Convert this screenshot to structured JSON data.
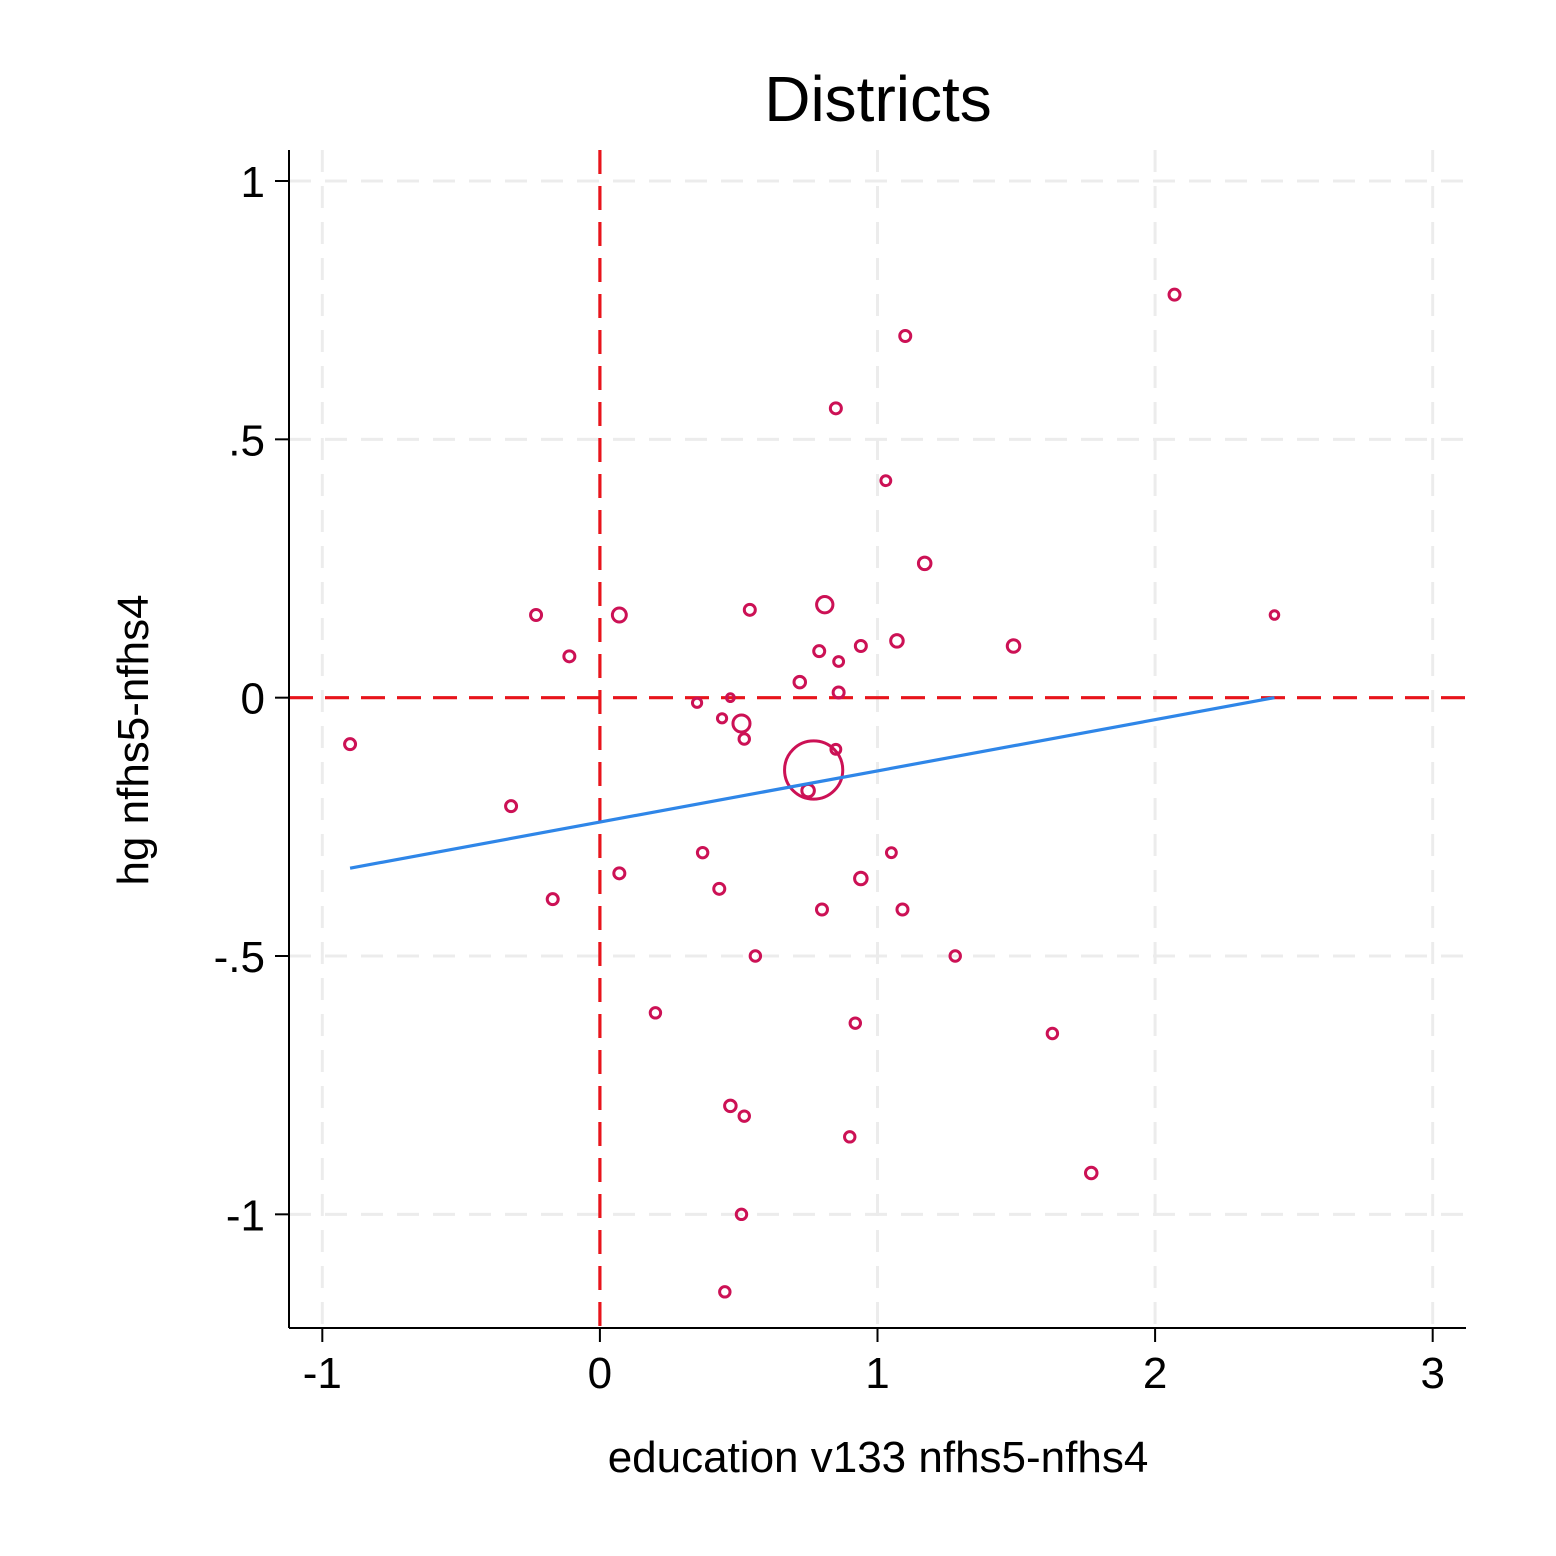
{
  "chart_data": {
    "type": "scatter",
    "title": "Districts",
    "xlabel": "education v133 nfhs5-nfhs4",
    "ylabel": "hg nfhs5-nfhs4",
    "xlim": [
      -1.12,
      3.12
    ],
    "ylim": [
      -1.22,
      1.06
    ],
    "xticks": [
      -1,
      0,
      1,
      2,
      3
    ],
    "xtick_labels": [
      "-1",
      "0",
      "1",
      "2",
      "3"
    ],
    "yticks": [
      -1,
      -0.5,
      0,
      0.5,
      1
    ],
    "ytick_labels": [
      "-1",
      "-.5",
      "0",
      ".5",
      "1"
    ],
    "grid": true,
    "reference_lines": {
      "x": 0,
      "y": 0
    },
    "marker_color": "#cc1155",
    "fit_color": "#2f86e8",
    "ref_color": "#e8141b",
    "points": [
      {
        "x": 2.07,
        "y": 0.78,
        "w": 1
      },
      {
        "x": 1.1,
        "y": 0.7,
        "w": 1
      },
      {
        "x": 0.85,
        "y": 0.56,
        "w": 1
      },
      {
        "x": 1.03,
        "y": 0.42,
        "w": 0.8
      },
      {
        "x": 1.17,
        "y": 0.26,
        "w": 1.3
      },
      {
        "x": 0.81,
        "y": 0.18,
        "w": 2.2
      },
      {
        "x": -0.23,
        "y": 0.16,
        "w": 1
      },
      {
        "x": 0.07,
        "y": 0.16,
        "w": 1.6
      },
      {
        "x": 0.54,
        "y": 0.17,
        "w": 1
      },
      {
        "x": 2.43,
        "y": 0.16,
        "w": 0.6
      },
      {
        "x": 1.07,
        "y": 0.11,
        "w": 1.3
      },
      {
        "x": 1.49,
        "y": 0.1,
        "w": 1.3
      },
      {
        "x": 0.94,
        "y": 0.1,
        "w": 1
      },
      {
        "x": 0.79,
        "y": 0.09,
        "w": 1
      },
      {
        "x": 0.86,
        "y": 0.07,
        "w": 0.8
      },
      {
        "x": -0.11,
        "y": 0.08,
        "w": 1
      },
      {
        "x": 0.72,
        "y": 0.03,
        "w": 1.1
      },
      {
        "x": 0.86,
        "y": 0.01,
        "w": 1
      },
      {
        "x": 0.47,
        "y": 0.0,
        "w": 0.5
      },
      {
        "x": 0.35,
        "y": -0.01,
        "w": 0.7
      },
      {
        "x": 0.44,
        "y": -0.04,
        "w": 0.7
      },
      {
        "x": 0.51,
        "y": -0.05,
        "w": 2.4
      },
      {
        "x": 0.52,
        "y": -0.08,
        "w": 0.9
      },
      {
        "x": 0.85,
        "y": -0.1,
        "w": 0.8
      },
      {
        "x": -0.9,
        "y": -0.09,
        "w": 1
      },
      {
        "x": 0.77,
        "y": -0.14,
        "w": 28
      },
      {
        "x": 0.75,
        "y": -0.18,
        "w": 1.3
      },
      {
        "x": -0.32,
        "y": -0.21,
        "w": 1
      },
      {
        "x": 0.37,
        "y": -0.3,
        "w": 0.9
      },
      {
        "x": 1.05,
        "y": -0.3,
        "w": 0.8
      },
      {
        "x": 0.07,
        "y": -0.34,
        "w": 1
      },
      {
        "x": 0.94,
        "y": -0.35,
        "w": 1.3
      },
      {
        "x": 0.43,
        "y": -0.37,
        "w": 1
      },
      {
        "x": -0.17,
        "y": -0.39,
        "w": 1
      },
      {
        "x": 0.8,
        "y": -0.41,
        "w": 1
      },
      {
        "x": 1.09,
        "y": -0.41,
        "w": 1
      },
      {
        "x": 0.56,
        "y": -0.5,
        "w": 0.9
      },
      {
        "x": 1.28,
        "y": -0.5,
        "w": 0.9
      },
      {
        "x": 0.2,
        "y": -0.61,
        "w": 0.9
      },
      {
        "x": 0.92,
        "y": -0.63,
        "w": 0.9
      },
      {
        "x": 1.63,
        "y": -0.65,
        "w": 0.9
      },
      {
        "x": 0.47,
        "y": -0.79,
        "w": 1.1
      },
      {
        "x": 0.52,
        "y": -0.81,
        "w": 0.9
      },
      {
        "x": 0.9,
        "y": -0.85,
        "w": 0.9
      },
      {
        "x": 1.77,
        "y": -0.92,
        "w": 1.1
      },
      {
        "x": 0.51,
        "y": -1.0,
        "w": 0.9
      },
      {
        "x": 0.45,
        "y": -1.15,
        "w": 0.9
      }
    ],
    "fit_line": {
      "x": [
        -0.9,
        2.43
      ],
      "y": [
        -0.33,
        0.0
      ]
    }
  }
}
